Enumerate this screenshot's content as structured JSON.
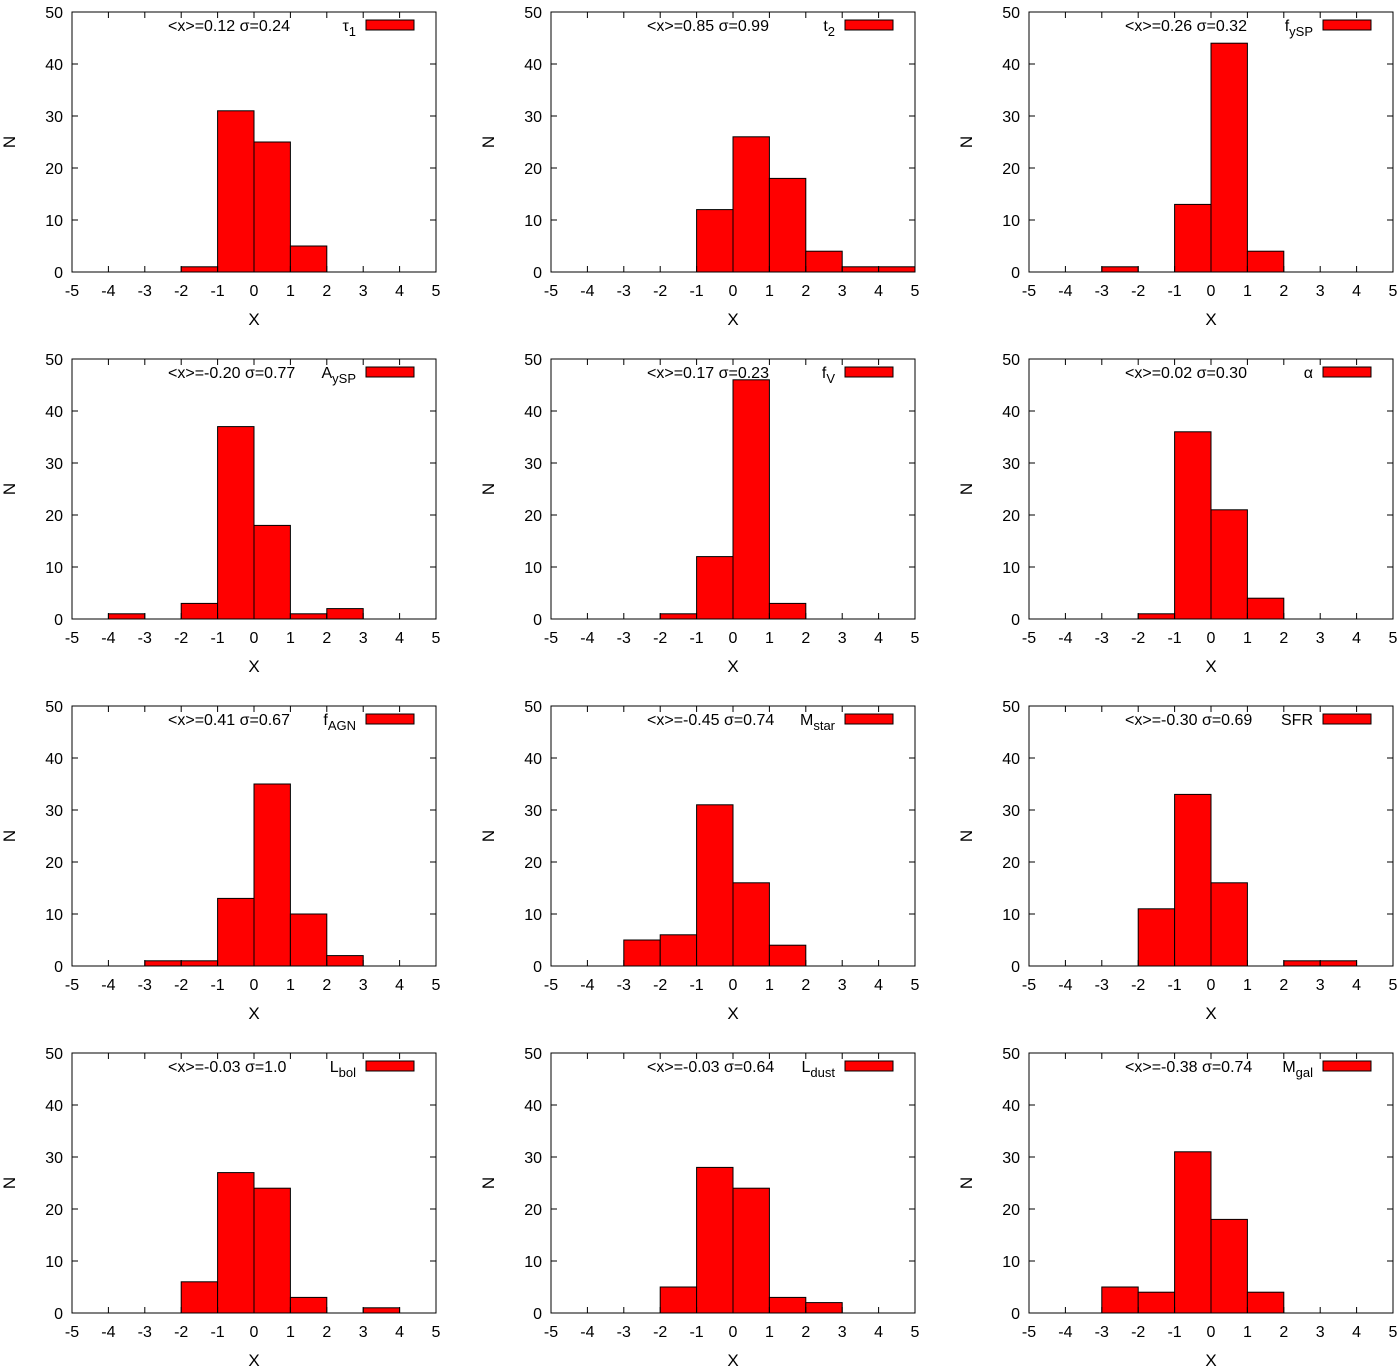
{
  "figure": {
    "bar_color": "#ff0000",
    "edge_color": "#000000"
  },
  "chart_data": [
    {
      "type": "bar",
      "series_name": "τ1",
      "stats": "<x>=0.12 σ=0.24",
      "legend_main": "τ",
      "legend_sub": "1",
      "xlabel": "X",
      "ylabel": "N",
      "xlim": [
        -5,
        5
      ],
      "ylim": [
        0,
        50
      ],
      "xticks": [
        "-5",
        "-4",
        "-3",
        "-2",
        "-1",
        "0",
        "1",
        "2",
        "3",
        "4",
        "5"
      ],
      "yticks": [
        "0",
        "10",
        "20",
        "30",
        "40",
        "50"
      ],
      "bins": [
        {
          "x0": -2,
          "x1": -1,
          "value": 1
        },
        {
          "x0": -1,
          "x1": 0,
          "value": 31
        },
        {
          "x0": 0,
          "x1": 1,
          "value": 25
        },
        {
          "x0": 1,
          "x1": 2,
          "value": 5
        }
      ]
    },
    {
      "type": "bar",
      "series_name": "t2",
      "stats": "<x>=0.85 σ=0.99",
      "legend_main": "t",
      "legend_sub": "2",
      "xlabel": "X",
      "ylabel": "N",
      "xlim": [
        -5,
        5
      ],
      "ylim": [
        0,
        50
      ],
      "xticks": [
        "-5",
        "-4",
        "-3",
        "-2",
        "-1",
        "0",
        "1",
        "2",
        "3",
        "4",
        "5"
      ],
      "yticks": [
        "0",
        "10",
        "20",
        "30",
        "40",
        "50"
      ],
      "bins": [
        {
          "x0": -1,
          "x1": 0,
          "value": 12
        },
        {
          "x0": 0,
          "x1": 1,
          "value": 26
        },
        {
          "x0": 1,
          "x1": 2,
          "value": 18
        },
        {
          "x0": 2,
          "x1": 3,
          "value": 4
        },
        {
          "x0": 3,
          "x1": 4,
          "value": 1
        },
        {
          "x0": 4,
          "x1": 5,
          "value": 1
        }
      ]
    },
    {
      "type": "bar",
      "series_name": "fySP",
      "stats": "<x>=0.26 σ=0.32",
      "legend_main": "f",
      "legend_sub": "ySP",
      "xlabel": "X",
      "ylabel": "N",
      "xlim": [
        -5,
        5
      ],
      "ylim": [
        0,
        50
      ],
      "xticks": [
        "-5",
        "-4",
        "-3",
        "-2",
        "-1",
        "0",
        "1",
        "2",
        "3",
        "4",
        "5"
      ],
      "yticks": [
        "0",
        "10",
        "20",
        "30",
        "40",
        "50"
      ],
      "bins": [
        {
          "x0": -3,
          "x1": -2,
          "value": 1
        },
        {
          "x0": -1,
          "x1": 0,
          "value": 13
        },
        {
          "x0": 0,
          "x1": 1,
          "value": 44
        },
        {
          "x0": 1,
          "x1": 2,
          "value": 4
        }
      ]
    },
    {
      "type": "bar",
      "series_name": "AySP",
      "stats": "<x>=-0.20 σ=0.77",
      "legend_main": "A",
      "legend_sub": "ySP",
      "xlabel": "X",
      "ylabel": "N",
      "xlim": [
        -5,
        5
      ],
      "ylim": [
        0,
        50
      ],
      "xticks": [
        "-5",
        "-4",
        "-3",
        "-2",
        "-1",
        "0",
        "1",
        "2",
        "3",
        "4",
        "5"
      ],
      "yticks": [
        "0",
        "10",
        "20",
        "30",
        "40",
        "50"
      ],
      "bins": [
        {
          "x0": -4,
          "x1": -3,
          "value": 1
        },
        {
          "x0": -2,
          "x1": -1,
          "value": 3
        },
        {
          "x0": -1,
          "x1": 0,
          "value": 37
        },
        {
          "x0": 0,
          "x1": 1,
          "value": 18
        },
        {
          "x0": 1,
          "x1": 2,
          "value": 1
        },
        {
          "x0": 2,
          "x1": 3,
          "value": 2
        }
      ]
    },
    {
      "type": "bar",
      "series_name": "fV",
      "stats": "<x>=0.17 σ=0.23",
      "legend_main": "f",
      "legend_sub": "V",
      "xlabel": "X",
      "ylabel": "N",
      "xlim": [
        -5,
        5
      ],
      "ylim": [
        0,
        50
      ],
      "xticks": [
        "-5",
        "-4",
        "-3",
        "-2",
        "-1",
        "0",
        "1",
        "2",
        "3",
        "4",
        "5"
      ],
      "yticks": [
        "0",
        "10",
        "20",
        "30",
        "40",
        "50"
      ],
      "bins": [
        {
          "x0": -2,
          "x1": -1,
          "value": 1
        },
        {
          "x0": -1,
          "x1": 0,
          "value": 12
        },
        {
          "x0": 0,
          "x1": 1,
          "value": 46
        },
        {
          "x0": 1,
          "x1": 2,
          "value": 3
        }
      ]
    },
    {
      "type": "bar",
      "series_name": "α",
      "stats": "<x>=0.02 σ=0.30",
      "legend_main": "α",
      "legend_sub": "",
      "xlabel": "X",
      "ylabel": "N",
      "xlim": [
        -5,
        5
      ],
      "ylim": [
        0,
        50
      ],
      "xticks": [
        "-5",
        "-4",
        "-3",
        "-2",
        "-1",
        "0",
        "1",
        "2",
        "3",
        "4",
        "5"
      ],
      "yticks": [
        "0",
        "10",
        "20",
        "30",
        "40",
        "50"
      ],
      "bins": [
        {
          "x0": -2,
          "x1": -1,
          "value": 1
        },
        {
          "x0": -1,
          "x1": 0,
          "value": 36
        },
        {
          "x0": 0,
          "x1": 1,
          "value": 21
        },
        {
          "x0": 1,
          "x1": 2,
          "value": 4
        }
      ]
    },
    {
      "type": "bar",
      "series_name": "fAGN",
      "stats": "<x>=0.41 σ=0.67",
      "legend_main": "f",
      "legend_sub": "AGN",
      "xlabel": "X",
      "ylabel": "N",
      "xlim": [
        -5,
        5
      ],
      "ylim": [
        0,
        50
      ],
      "xticks": [
        "-5",
        "-4",
        "-3",
        "-2",
        "-1",
        "0",
        "1",
        "2",
        "3",
        "4",
        "5"
      ],
      "yticks": [
        "0",
        "10",
        "20",
        "30",
        "40",
        "50"
      ],
      "bins": [
        {
          "x0": -3,
          "x1": -2,
          "value": 1
        },
        {
          "x0": -2,
          "x1": -1,
          "value": 1
        },
        {
          "x0": -1,
          "x1": 0,
          "value": 13
        },
        {
          "x0": 0,
          "x1": 1,
          "value": 35
        },
        {
          "x0": 1,
          "x1": 2,
          "value": 10
        },
        {
          "x0": 2,
          "x1": 3,
          "value": 2
        }
      ]
    },
    {
      "type": "bar",
      "series_name": "Mstar",
      "stats": "<x>=-0.45 σ=0.74",
      "legend_main": "M",
      "legend_sub": "star",
      "xlabel": "X",
      "ylabel": "N",
      "xlim": [
        -5,
        5
      ],
      "ylim": [
        0,
        50
      ],
      "xticks": [
        "-5",
        "-4",
        "-3",
        "-2",
        "-1",
        "0",
        "1",
        "2",
        "3",
        "4",
        "5"
      ],
      "yticks": [
        "0",
        "10",
        "20",
        "30",
        "40",
        "50"
      ],
      "bins": [
        {
          "x0": -3,
          "x1": -2,
          "value": 5
        },
        {
          "x0": -2,
          "x1": -1,
          "value": 6
        },
        {
          "x0": -1,
          "x1": 0,
          "value": 31
        },
        {
          "x0": 0,
          "x1": 1,
          "value": 16
        },
        {
          "x0": 1,
          "x1": 2,
          "value": 4
        }
      ]
    },
    {
      "type": "bar",
      "series_name": "SFR",
      "stats": "<x>=-0.30 σ=0.69",
      "legend_main": "SFR",
      "legend_sub": "",
      "xlabel": "X",
      "ylabel": "N",
      "xlim": [
        -5,
        5
      ],
      "ylim": [
        0,
        50
      ],
      "xticks": [
        "-5",
        "-4",
        "-3",
        "-2",
        "-1",
        "0",
        "1",
        "2",
        "3",
        "4",
        "5"
      ],
      "yticks": [
        "0",
        "10",
        "20",
        "30",
        "40",
        "50"
      ],
      "bins": [
        {
          "x0": -2,
          "x1": -1,
          "value": 11
        },
        {
          "x0": -1,
          "x1": 0,
          "value": 33
        },
        {
          "x0": 0,
          "x1": 1,
          "value": 16
        },
        {
          "x0": 2,
          "x1": 3,
          "value": 1
        },
        {
          "x0": 3,
          "x1": 4,
          "value": 1
        }
      ]
    },
    {
      "type": "bar",
      "series_name": "Lbol",
      "stats": "<x>=-0.03 σ=1.0",
      "legend_main": "L",
      "legend_sub": "bol",
      "xlabel": "X",
      "ylabel": "N",
      "xlim": [
        -5,
        5
      ],
      "ylim": [
        0,
        50
      ],
      "xticks": [
        "-5",
        "-4",
        "-3",
        "-2",
        "-1",
        "0",
        "1",
        "2",
        "3",
        "4",
        "5"
      ],
      "yticks": [
        "0",
        "10",
        "20",
        "30",
        "40",
        "50"
      ],
      "bins": [
        {
          "x0": -2,
          "x1": -1,
          "value": 6
        },
        {
          "x0": -1,
          "x1": 0,
          "value": 27
        },
        {
          "x0": 0,
          "x1": 1,
          "value": 24
        },
        {
          "x0": 1,
          "x1": 2,
          "value": 3
        },
        {
          "x0": 3,
          "x1": 4,
          "value": 1
        }
      ]
    },
    {
      "type": "bar",
      "series_name": "Ldust",
      "stats": "<x>=-0.03 σ=0.64",
      "legend_main": "L",
      "legend_sub": "dust",
      "xlabel": "X",
      "ylabel": "N",
      "xlim": [
        -5,
        5
      ],
      "ylim": [
        0,
        50
      ],
      "xticks": [
        "-5",
        "-4",
        "-3",
        "-2",
        "-1",
        "0",
        "1",
        "2",
        "3",
        "4",
        "5"
      ],
      "yticks": [
        "0",
        "10",
        "20",
        "30",
        "40",
        "50"
      ],
      "bins": [
        {
          "x0": -2,
          "x1": -1,
          "value": 5
        },
        {
          "x0": -1,
          "x1": 0,
          "value": 28
        },
        {
          "x0": 0,
          "x1": 1,
          "value": 24
        },
        {
          "x0": 1,
          "x1": 2,
          "value": 3
        },
        {
          "x0": 2,
          "x1": 3,
          "value": 2
        }
      ]
    },
    {
      "type": "bar",
      "series_name": "Mgal",
      "stats": "<x>=-0.38 σ=0.74",
      "legend_main": "M",
      "legend_sub": "gal",
      "xlabel": "X",
      "ylabel": "N",
      "xlim": [
        -5,
        5
      ],
      "ylim": [
        0,
        50
      ],
      "xticks": [
        "-5",
        "-4",
        "-3",
        "-2",
        "-1",
        "0",
        "1",
        "2",
        "3",
        "4",
        "5"
      ],
      "yticks": [
        "0",
        "10",
        "20",
        "30",
        "40",
        "50"
      ],
      "bins": [
        {
          "x0": -3,
          "x1": -2,
          "value": 5
        },
        {
          "x0": -2,
          "x1": -1,
          "value": 4
        },
        {
          "x0": -1,
          "x1": 0,
          "value": 31
        },
        {
          "x0": 0,
          "x1": 1,
          "value": 18
        },
        {
          "x0": 1,
          "x1": 2,
          "value": 4
        }
      ]
    }
  ]
}
